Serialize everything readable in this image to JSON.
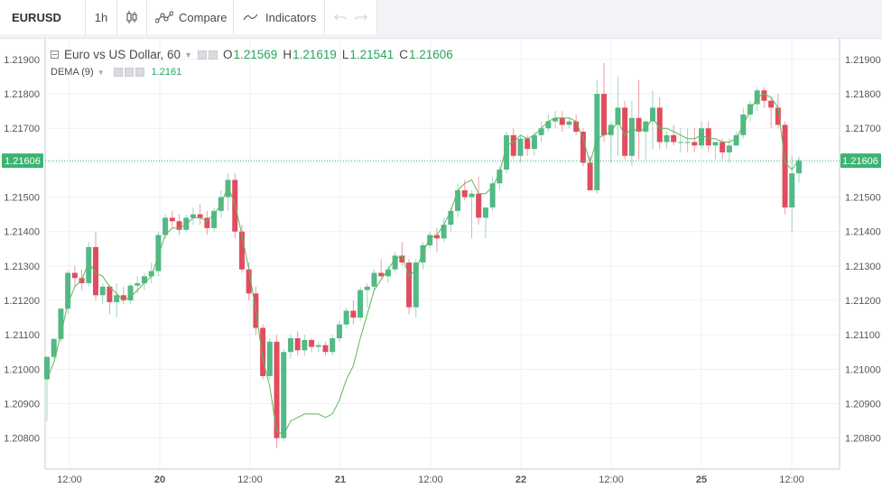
{
  "toolbar": {
    "symbol": "EURUSD",
    "interval": "1h",
    "compare_label": "Compare",
    "indicators_label": "Indicators"
  },
  "legend": {
    "title": "Euro vs US Dollar, 60",
    "o_label": "O",
    "o_value": "1.21569",
    "h_label": "H",
    "h_value": "1.21619",
    "l_label": "L",
    "l_value": "1.21541",
    "c_label": "C",
    "c_value": "1.21606",
    "indicator_name": "DEMA (9)",
    "indicator_value": "1.2161"
  },
  "colors": {
    "up": "#52b987",
    "down": "#e24c5e",
    "dema": "#5cb85c",
    "price_tag": "#3cb371"
  },
  "chart_data": {
    "type": "candlestick",
    "y_ticks": [
      "1.21900",
      "1.21800",
      "1.21700",
      "1.21600",
      "1.21500",
      "1.21400",
      "1.21300",
      "1.21200",
      "1.21100",
      "1.21000",
      "1.20900",
      "1.20800"
    ],
    "x_ticks": [
      "12:00",
      "20",
      "12:00",
      "21",
      "12:00",
      "22",
      "12:00",
      "25",
      "12:00"
    ],
    "ylim": [
      1.2071,
      1.2196
    ],
    "current_price": "1.21606",
    "dema_series_name": "DEMA (9)",
    "candles": [
      [
        1.20971,
        1.21035,
        1.2085,
        1.21036
      ],
      [
        1.21036,
        1.2109,
        1.2103,
        1.21088
      ],
      [
        1.21088,
        1.21178,
        1.2108,
        1.21176
      ],
      [
        1.21176,
        1.21286,
        1.2116,
        1.2128
      ],
      [
        1.2128,
        1.213,
        1.2124,
        1.21265
      ],
      [
        1.21265,
        1.2129,
        1.2123,
        1.2125
      ],
      [
        1.2125,
        1.2137,
        1.2124,
        1.21355
      ],
      [
        1.21355,
        1.214,
        1.212,
        1.21215
      ],
      [
        1.21215,
        1.2125,
        1.2119,
        1.2124
      ],
      [
        1.2124,
        1.21245,
        1.2116,
        1.21195
      ],
      [
        1.21195,
        1.2125,
        1.2115,
        1.21215
      ],
      [
        1.21215,
        1.2124,
        1.2119,
        1.212
      ],
      [
        1.212,
        1.2125,
        1.2119,
        1.21243
      ],
      [
        1.21243,
        1.2127,
        1.2122,
        1.2125
      ],
      [
        1.2125,
        1.2128,
        1.2123,
        1.2127
      ],
      [
        1.2127,
        1.2131,
        1.2125,
        1.21285
      ],
      [
        1.21285,
        1.214,
        1.2127,
        1.2139
      ],
      [
        1.2139,
        1.2145,
        1.2138,
        1.2144
      ],
      [
        1.2144,
        1.2146,
        1.2141,
        1.2143
      ],
      [
        1.2143,
        1.2145,
        1.2139,
        1.21405
      ],
      [
        1.21405,
        1.2145,
        1.214,
        1.2144
      ],
      [
        1.2144,
        1.2147,
        1.2142,
        1.2145
      ],
      [
        1.2145,
        1.2148,
        1.2142,
        1.2144
      ],
      [
        1.2144,
        1.2146,
        1.2139,
        1.2141
      ],
      [
        1.2141,
        1.2147,
        1.214,
        1.2146
      ],
      [
        1.2146,
        1.2152,
        1.2144,
        1.215
      ],
      [
        1.215,
        1.2157,
        1.2146,
        1.2155
      ],
      [
        1.2155,
        1.2157,
        1.2138,
        1.214
      ],
      [
        1.214,
        1.2142,
        1.2128,
        1.2129
      ],
      [
        1.2129,
        1.2131,
        1.212,
        1.2122
      ],
      [
        1.2122,
        1.2124,
        1.211,
        1.2112
      ],
      [
        1.2112,
        1.2113,
        1.2097,
        1.2098
      ],
      [
        1.2098,
        1.2109,
        1.2097,
        1.2108
      ],
      [
        1.2108,
        1.211,
        1.2077,
        1.208
      ],
      [
        1.208,
        1.2106,
        1.2079,
        1.2105
      ],
      [
        1.2105,
        1.211,
        1.2103,
        1.2109
      ],
      [
        1.2109,
        1.2111,
        1.2104,
        1.21055
      ],
      [
        1.21055,
        1.211,
        1.2104,
        1.21085
      ],
      [
        1.21085,
        1.2109,
        1.2105,
        1.21065
      ],
      [
        1.21065,
        1.2108,
        1.2105,
        1.2107
      ],
      [
        1.2107,
        1.2108,
        1.2104,
        1.2105
      ],
      [
        1.2105,
        1.211,
        1.2104,
        1.2109
      ],
      [
        1.2109,
        1.2114,
        1.2108,
        1.2113
      ],
      [
        1.2113,
        1.2118,
        1.2112,
        1.2117
      ],
      [
        1.2117,
        1.212,
        1.2113,
        1.2115
      ],
      [
        1.2115,
        1.2124,
        1.2114,
        1.2123
      ],
      [
        1.2123,
        1.2125,
        1.2118,
        1.2124
      ],
      [
        1.2124,
        1.2129,
        1.2123,
        1.2128
      ],
      [
        1.2128,
        1.2132,
        1.2126,
        1.2127
      ],
      [
        1.2127,
        1.213,
        1.2125,
        1.2129
      ],
      [
        1.2129,
        1.2134,
        1.2128,
        1.2133
      ],
      [
        1.2133,
        1.2137,
        1.213,
        1.2131
      ],
      [
        1.2131,
        1.2132,
        1.2116,
        1.2118
      ],
      [
        1.2118,
        1.2132,
        1.2115,
        1.2131
      ],
      [
        1.2131,
        1.2137,
        1.2129,
        1.2136
      ],
      [
        1.2136,
        1.214,
        1.2135,
        1.2139
      ],
      [
        1.2139,
        1.2141,
        1.2134,
        1.2138
      ],
      [
        1.2138,
        1.2144,
        1.2137,
        1.2142
      ],
      [
        1.2142,
        1.2147,
        1.214,
        1.2146
      ],
      [
        1.2146,
        1.2154,
        1.2144,
        1.2152
      ],
      [
        1.2152,
        1.2155,
        1.2149,
        1.215
      ],
      [
        1.215,
        1.2152,
        1.2138,
        1.2151
      ],
      [
        1.2151,
        1.2156,
        1.2142,
        1.2144
      ],
      [
        1.2144,
        1.2147,
        1.2138,
        1.2147
      ],
      [
        1.2147,
        1.2156,
        1.2146,
        1.2154
      ],
      [
        1.2154,
        1.2159,
        1.2152,
        1.2158
      ],
      [
        1.2158,
        1.2169,
        1.2157,
        1.2168
      ],
      [
        1.2168,
        1.217,
        1.2161,
        1.2162
      ],
      [
        1.2162,
        1.2168,
        1.216,
        1.2167
      ],
      [
        1.2167,
        1.2168,
        1.2162,
        1.2164
      ],
      [
        1.2164,
        1.2169,
        1.2162,
        1.2168
      ],
      [
        1.2168,
        1.2172,
        1.2166,
        1.217
      ],
      [
        1.217,
        1.2174,
        1.2169,
        1.2172
      ],
      [
        1.2172,
        1.2175,
        1.217,
        1.2173
      ],
      [
        1.2173,
        1.2175,
        1.2169,
        1.2171
      ],
      [
        1.2171,
        1.2173,
        1.217,
        1.2172
      ],
      [
        1.2172,
        1.2174,
        1.2168,
        1.2169
      ],
      [
        1.2169,
        1.217,
        1.2159,
        1.216
      ],
      [
        1.216,
        1.2162,
        1.2152,
        1.2152
      ],
      [
        1.2152,
        1.2184,
        1.2151,
        1.218
      ],
      [
        1.218,
        1.2189,
        1.2166,
        1.2168
      ],
      [
        1.2168,
        1.2172,
        1.216,
        1.2171
      ],
      [
        1.2171,
        1.2185,
        1.2162,
        1.2176
      ],
      [
        1.2176,
        1.2178,
        1.2161,
        1.2162
      ],
      [
        1.2162,
        1.2178,
        1.2159,
        1.2173
      ],
      [
        1.2173,
        1.2184,
        1.2161,
        1.2169
      ],
      [
        1.2169,
        1.2172,
        1.2161,
        1.2172
      ],
      [
        1.2172,
        1.2181,
        1.2164,
        1.2176
      ],
      [
        1.2176,
        1.2179,
        1.2164,
        1.2166
      ],
      [
        1.2166,
        1.2169,
        1.2164,
        1.2168
      ],
      [
        1.2168,
        1.2171,
        1.2165,
        1.2166
      ],
      [
        1.2166,
        1.217,
        1.2163,
        1.2166
      ],
      [
        1.2166,
        1.217,
        1.2163,
        1.2166
      ],
      [
        1.2166,
        1.217,
        1.2163,
        1.2165
      ],
      [
        1.2165,
        1.2172,
        1.2164,
        1.217
      ],
      [
        1.217,
        1.2172,
        1.2163,
        1.2165
      ],
      [
        1.2165,
        1.2166,
        1.2161,
        1.2166
      ],
      [
        1.2166,
        1.2167,
        1.2161,
        1.2163
      ],
      [
        1.2163,
        1.2167,
        1.216,
        1.2165
      ],
      [
        1.2165,
        1.2169,
        1.2165,
        1.2168
      ],
      [
        1.2168,
        1.2176,
        1.2167,
        1.2174
      ],
      [
        1.2174,
        1.2178,
        1.2172,
        1.2177
      ],
      [
        1.2177,
        1.2182,
        1.2175,
        1.2181
      ],
      [
        1.2181,
        1.2182,
        1.2176,
        1.2178
      ],
      [
        1.2178,
        1.2179,
        1.217,
        1.2176
      ],
      [
        1.2176,
        1.218,
        1.217,
        1.2171
      ],
      [
        1.2171,
        1.2172,
        1.2145,
        1.2147
      ],
      [
        1.2147,
        1.2162,
        1.214,
        1.21569
      ],
      [
        1.21569,
        1.21619,
        1.21541,
        1.21606
      ]
    ],
    "dema": [
      1.2097,
      1.2102,
      1.211,
      1.2119,
      1.2124,
      1.2126,
      1.2131,
      1.2128,
      1.2127,
      1.2124,
      1.2122,
      1.212,
      1.2121,
      1.2123,
      1.2125,
      1.2127,
      1.2133,
      1.2139,
      1.2141,
      1.2141,
      1.2142,
      1.2144,
      1.2144,
      1.2143,
      1.2145,
      1.2148,
      1.2153,
      1.2148,
      1.2139,
      1.2129,
      1.2117,
      1.2103,
      1.2095,
      1.2082,
      1.2081,
      1.2085,
      1.2086,
      1.2087,
      1.2087,
      1.2087,
      1.2086,
      1.2087,
      1.2091,
      1.2097,
      1.2101,
      1.2109,
      1.2116,
      1.2123,
      1.2126,
      1.2129,
      1.2132,
      1.2133,
      1.2127,
      1.2129,
      1.2134,
      1.2138,
      1.2139,
      1.2142,
      1.2146,
      1.2152,
      1.2154,
      1.2155,
      1.2151,
      1.2151,
      1.2153,
      1.2157,
      1.2165,
      1.2166,
      1.2168,
      1.2167,
      1.2168,
      1.217,
      1.2172,
      1.2173,
      1.2173,
      1.2173,
      1.2172,
      1.2167,
      1.216,
      1.2167,
      1.2168,
      1.2169,
      1.2172,
      1.2168,
      1.217,
      1.2169,
      1.217,
      1.2173,
      1.217,
      1.217,
      1.2169,
      1.2168,
      1.2167,
      1.2167,
      1.2168,
      1.2167,
      1.2167,
      1.2166,
      1.2166,
      1.2167,
      1.2171,
      1.2175,
      1.2179,
      1.218,
      1.2179,
      1.2176,
      1.216,
      1.2158,
      1.2161
    ]
  }
}
